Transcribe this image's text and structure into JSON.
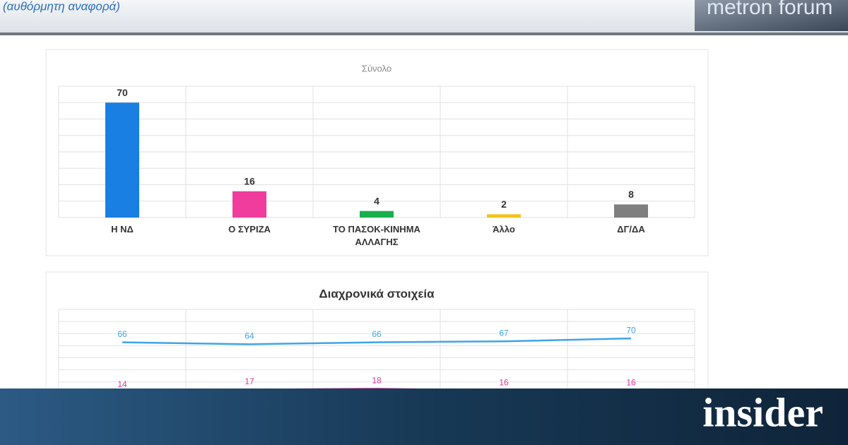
{
  "header": {
    "subtitle": "(αυθόρμητη αναφορά)",
    "logo": "metron forum"
  },
  "footer": {
    "brand": "insider"
  },
  "chart_data": [
    {
      "type": "bar",
      "title": "Σύνολο",
      "categories": [
        "Η ΝΔ",
        "Ο ΣΥΡΙΖΑ",
        "ΤΟ ΠΑΣΟΚ-ΚΙΝΗΜΑ ΑΛΛΑΓΗΣ",
        "Άλλο",
        "ΔΓ/ΔΑ"
      ],
      "values": [
        70,
        16,
        4,
        2,
        8
      ],
      "colors": [
        "#1a7fe3",
        "#f03c9c",
        "#16b04c",
        "#f2c21a",
        "#7f7f7f"
      ],
      "ylim": [
        0,
        80
      ],
      "grid": true
    },
    {
      "type": "line",
      "title": "Διαχρονικά στοιχεία",
      "categories": [
        null,
        null,
        null,
        null,
        null
      ],
      "series": [
        {
          "color": "#3fa4e6",
          "values": [
            66,
            64,
            66,
            67,
            70
          ]
        },
        {
          "color": "#e8359a",
          "values": [
            14,
            17,
            18,
            16,
            16
          ]
        }
      ],
      "ylim": [
        0,
        100
      ],
      "grid": true
    }
  ]
}
